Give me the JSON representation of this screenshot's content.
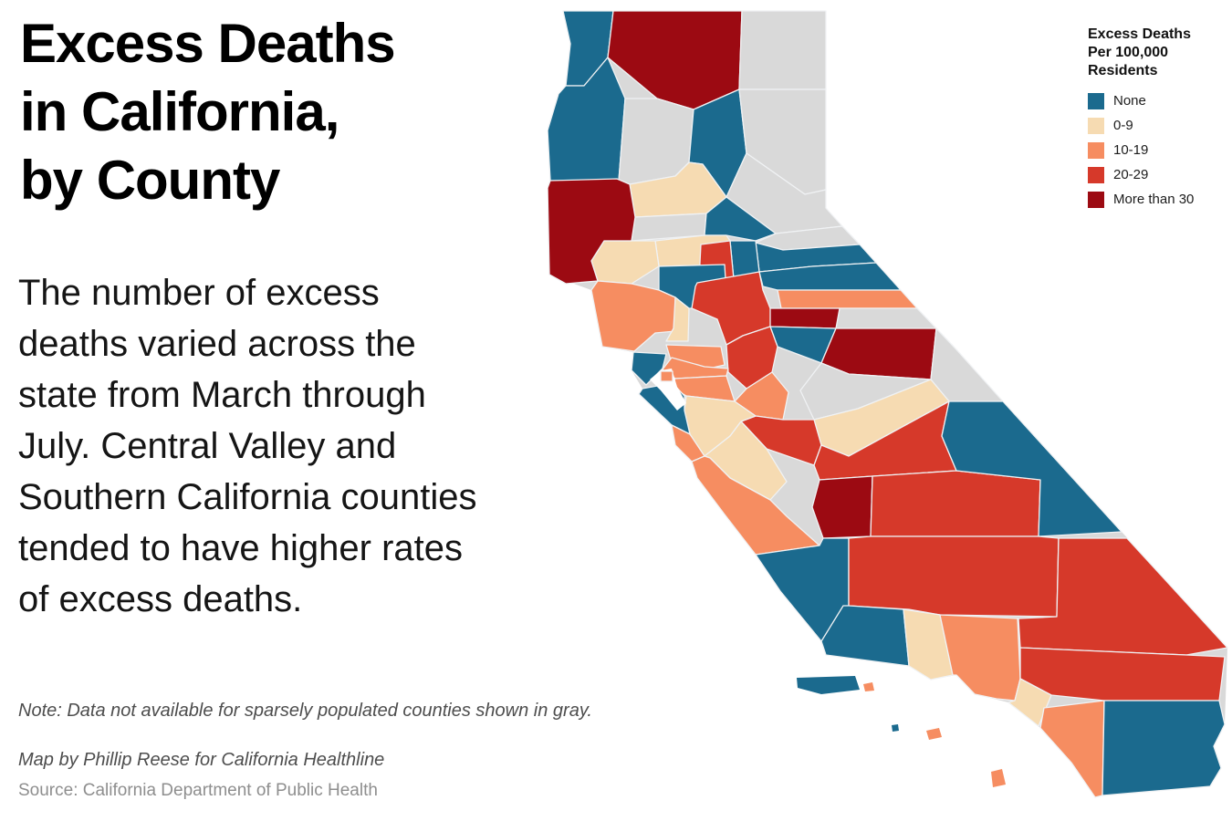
{
  "title_lines": [
    "Excess Deaths",
    "in California,",
    "by County"
  ],
  "description_lines": [
    "The number of excess",
    "deaths varied across the",
    "state from March through",
    "July. Central Valley and",
    "Southern California counties",
    "tended to have higher rates",
    "of excess deaths."
  ],
  "note": "Note: Data not available for sparsely populated counties shown in gray.",
  "credit": "Map by Phillip Reese for California Healthline",
  "source": "Source: California Department of Public Health",
  "legend": {
    "title_lines": [
      "Excess Deaths",
      "Per 100,000",
      "Residents"
    ],
    "items": [
      {
        "label": "None",
        "category": "none"
      },
      {
        "label": "0-9",
        "category": "d0_9"
      },
      {
        "label": "10-19",
        "category": "d10_19"
      },
      {
        "label": "20-29",
        "category": "d20_29"
      },
      {
        "label": "More than 30",
        "category": "d30"
      }
    ]
  },
  "colors": {
    "none": "#1b6a8e",
    "d0_9": "#f6dbb2",
    "d10_19": "#f68d61",
    "d20_29": "#d6392a",
    "d30": "#9c0a12",
    "na": "#d9d9d9",
    "border": "#f0f2f4",
    "water": "#ffffff"
  },
  "chart_data": {
    "type": "choropleth",
    "geography": "California counties",
    "metric": "Excess deaths per 100,000 residents, March through July",
    "categories": [
      "None",
      "0-9",
      "10-19",
      "20-29",
      "More than 30",
      "No data (gray)"
    ],
    "counties": [
      {
        "name": "Del Norte",
        "category": "none"
      },
      {
        "name": "Siskiyou",
        "category": "d30"
      },
      {
        "name": "Modoc",
        "category": "na"
      },
      {
        "name": "Humboldt",
        "category": "none"
      },
      {
        "name": "Trinity",
        "category": "na"
      },
      {
        "name": "Shasta",
        "category": "none"
      },
      {
        "name": "Lassen",
        "category": "na"
      },
      {
        "name": "Plumas",
        "category": "na"
      },
      {
        "name": "Sierra",
        "category": "na"
      },
      {
        "name": "Nevada",
        "category": "none"
      },
      {
        "name": "Placer",
        "category": "none"
      },
      {
        "name": "El Dorado",
        "category": "d10_19"
      },
      {
        "name": "Alpine",
        "category": "na"
      },
      {
        "name": "Amador",
        "category": "d30"
      },
      {
        "name": "Calaveras",
        "category": "none"
      },
      {
        "name": "Tuolumne",
        "category": "d30"
      },
      {
        "name": "Mono",
        "category": "na"
      },
      {
        "name": "Mariposa",
        "category": "na"
      },
      {
        "name": "Madera",
        "category": "d0_9"
      },
      {
        "name": "Tehama",
        "category": "d0_9"
      },
      {
        "name": "Glenn",
        "category": "na"
      },
      {
        "name": "Butte",
        "category": "none"
      },
      {
        "name": "Colusa",
        "category": "d0_9"
      },
      {
        "name": "Lake",
        "category": "d0_9"
      },
      {
        "name": "Mendocino",
        "category": "d30"
      },
      {
        "name": "Yuba",
        "category": "none"
      },
      {
        "name": "Sutter",
        "category": "d20_29"
      },
      {
        "name": "Yolo",
        "category": "none"
      },
      {
        "name": "Sonoma",
        "category": "d10_19"
      },
      {
        "name": "Napa",
        "category": "d0_9"
      },
      {
        "name": "Solano",
        "category": "d10_19"
      },
      {
        "name": "Sacramento",
        "category": "d20_29"
      },
      {
        "name": "San Joaquin",
        "category": "d20_29"
      },
      {
        "name": "Stanislaus",
        "category": "d10_19"
      },
      {
        "name": "Merced",
        "category": "d20_29"
      },
      {
        "name": "Marin",
        "category": "none"
      },
      {
        "name": "San Francisco",
        "category": "d10_19"
      },
      {
        "name": "Contra Costa",
        "category": "d10_19"
      },
      {
        "name": "Alameda",
        "category": "d10_19"
      },
      {
        "name": "Santa Clara",
        "category": "d0_9"
      },
      {
        "name": "San Mateo",
        "category": "none"
      },
      {
        "name": "Santa Cruz",
        "category": "d10_19"
      },
      {
        "name": "San Benito",
        "category": "d0_9"
      },
      {
        "name": "Monterey",
        "category": "d10_19"
      },
      {
        "name": "Fresno",
        "category": "d20_29"
      },
      {
        "name": "Kings",
        "category": "d30"
      },
      {
        "name": "Tulare",
        "category": "d20_29"
      },
      {
        "name": "Inyo",
        "category": "none"
      },
      {
        "name": "San Luis Obispo",
        "category": "none"
      },
      {
        "name": "Kern",
        "category": "d20_29"
      },
      {
        "name": "Santa Barbara",
        "category": "none"
      },
      {
        "name": "Ventura",
        "category": "d0_9"
      },
      {
        "name": "Los Angeles",
        "category": "d10_19"
      },
      {
        "name": "San Bernardino",
        "category": "d20_29"
      },
      {
        "name": "Riverside",
        "category": "d20_29"
      },
      {
        "name": "Orange",
        "category": "d0_9"
      },
      {
        "name": "San Diego",
        "category": "d10_19"
      },
      {
        "name": "Imperial",
        "category": "none"
      }
    ]
  }
}
